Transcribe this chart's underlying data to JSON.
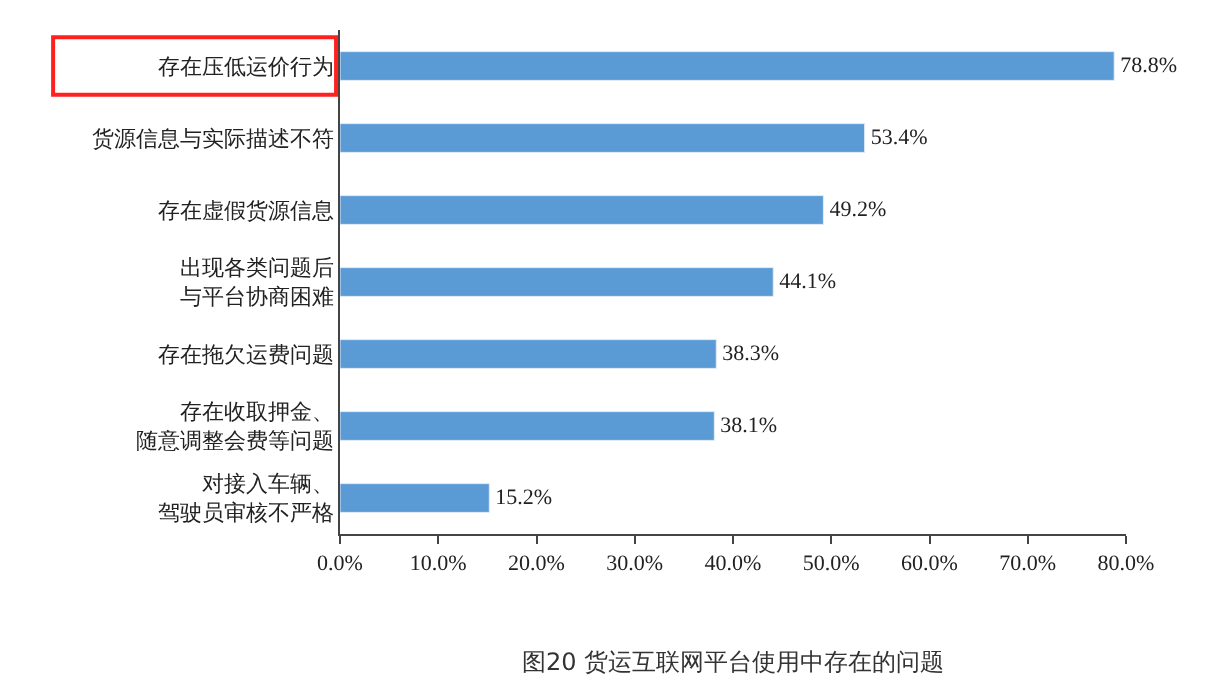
{
  "chart_data": {
    "type": "bar",
    "orientation": "horizontal",
    "title": "图20 货运互联网平台使用中存在的问题",
    "categories": [
      "存在压低运价行为",
      "货源信息与实际描述不符",
      "存在虚假货源信息",
      "出现各类问题后与平台协商困难",
      "存在拖欠运费问题",
      "存在收取押金、随意调整会费等问题",
      "对接入车辆、驾驶员审核不严格"
    ],
    "values": [
      78.8,
      53.4,
      49.2,
      44.1,
      38.3,
      38.1,
      15.2
    ],
    "value_labels": [
      "78.8%",
      "53.4%",
      "49.2%",
      "44.1%",
      "38.3%",
      "38.1%",
      "15.2%"
    ],
    "color": "#5b9bd5",
    "xlim": [
      0,
      80
    ],
    "xticks": [
      {
        "value": 0,
        "label": "0.0%"
      },
      {
        "value": 10,
        "label": "10.0%"
      },
      {
        "value": 20,
        "label": "20.0%"
      },
      {
        "value": 30,
        "label": "30.0%"
      },
      {
        "value": 40,
        "label": "40.0%"
      },
      {
        "value": 50,
        "label": "50.0%"
      },
      {
        "value": 60,
        "label": "60.0%"
      },
      {
        "value": 70,
        "label": "70.0%"
      },
      {
        "value": 80,
        "label": "80.0%"
      }
    ]
  }
}
